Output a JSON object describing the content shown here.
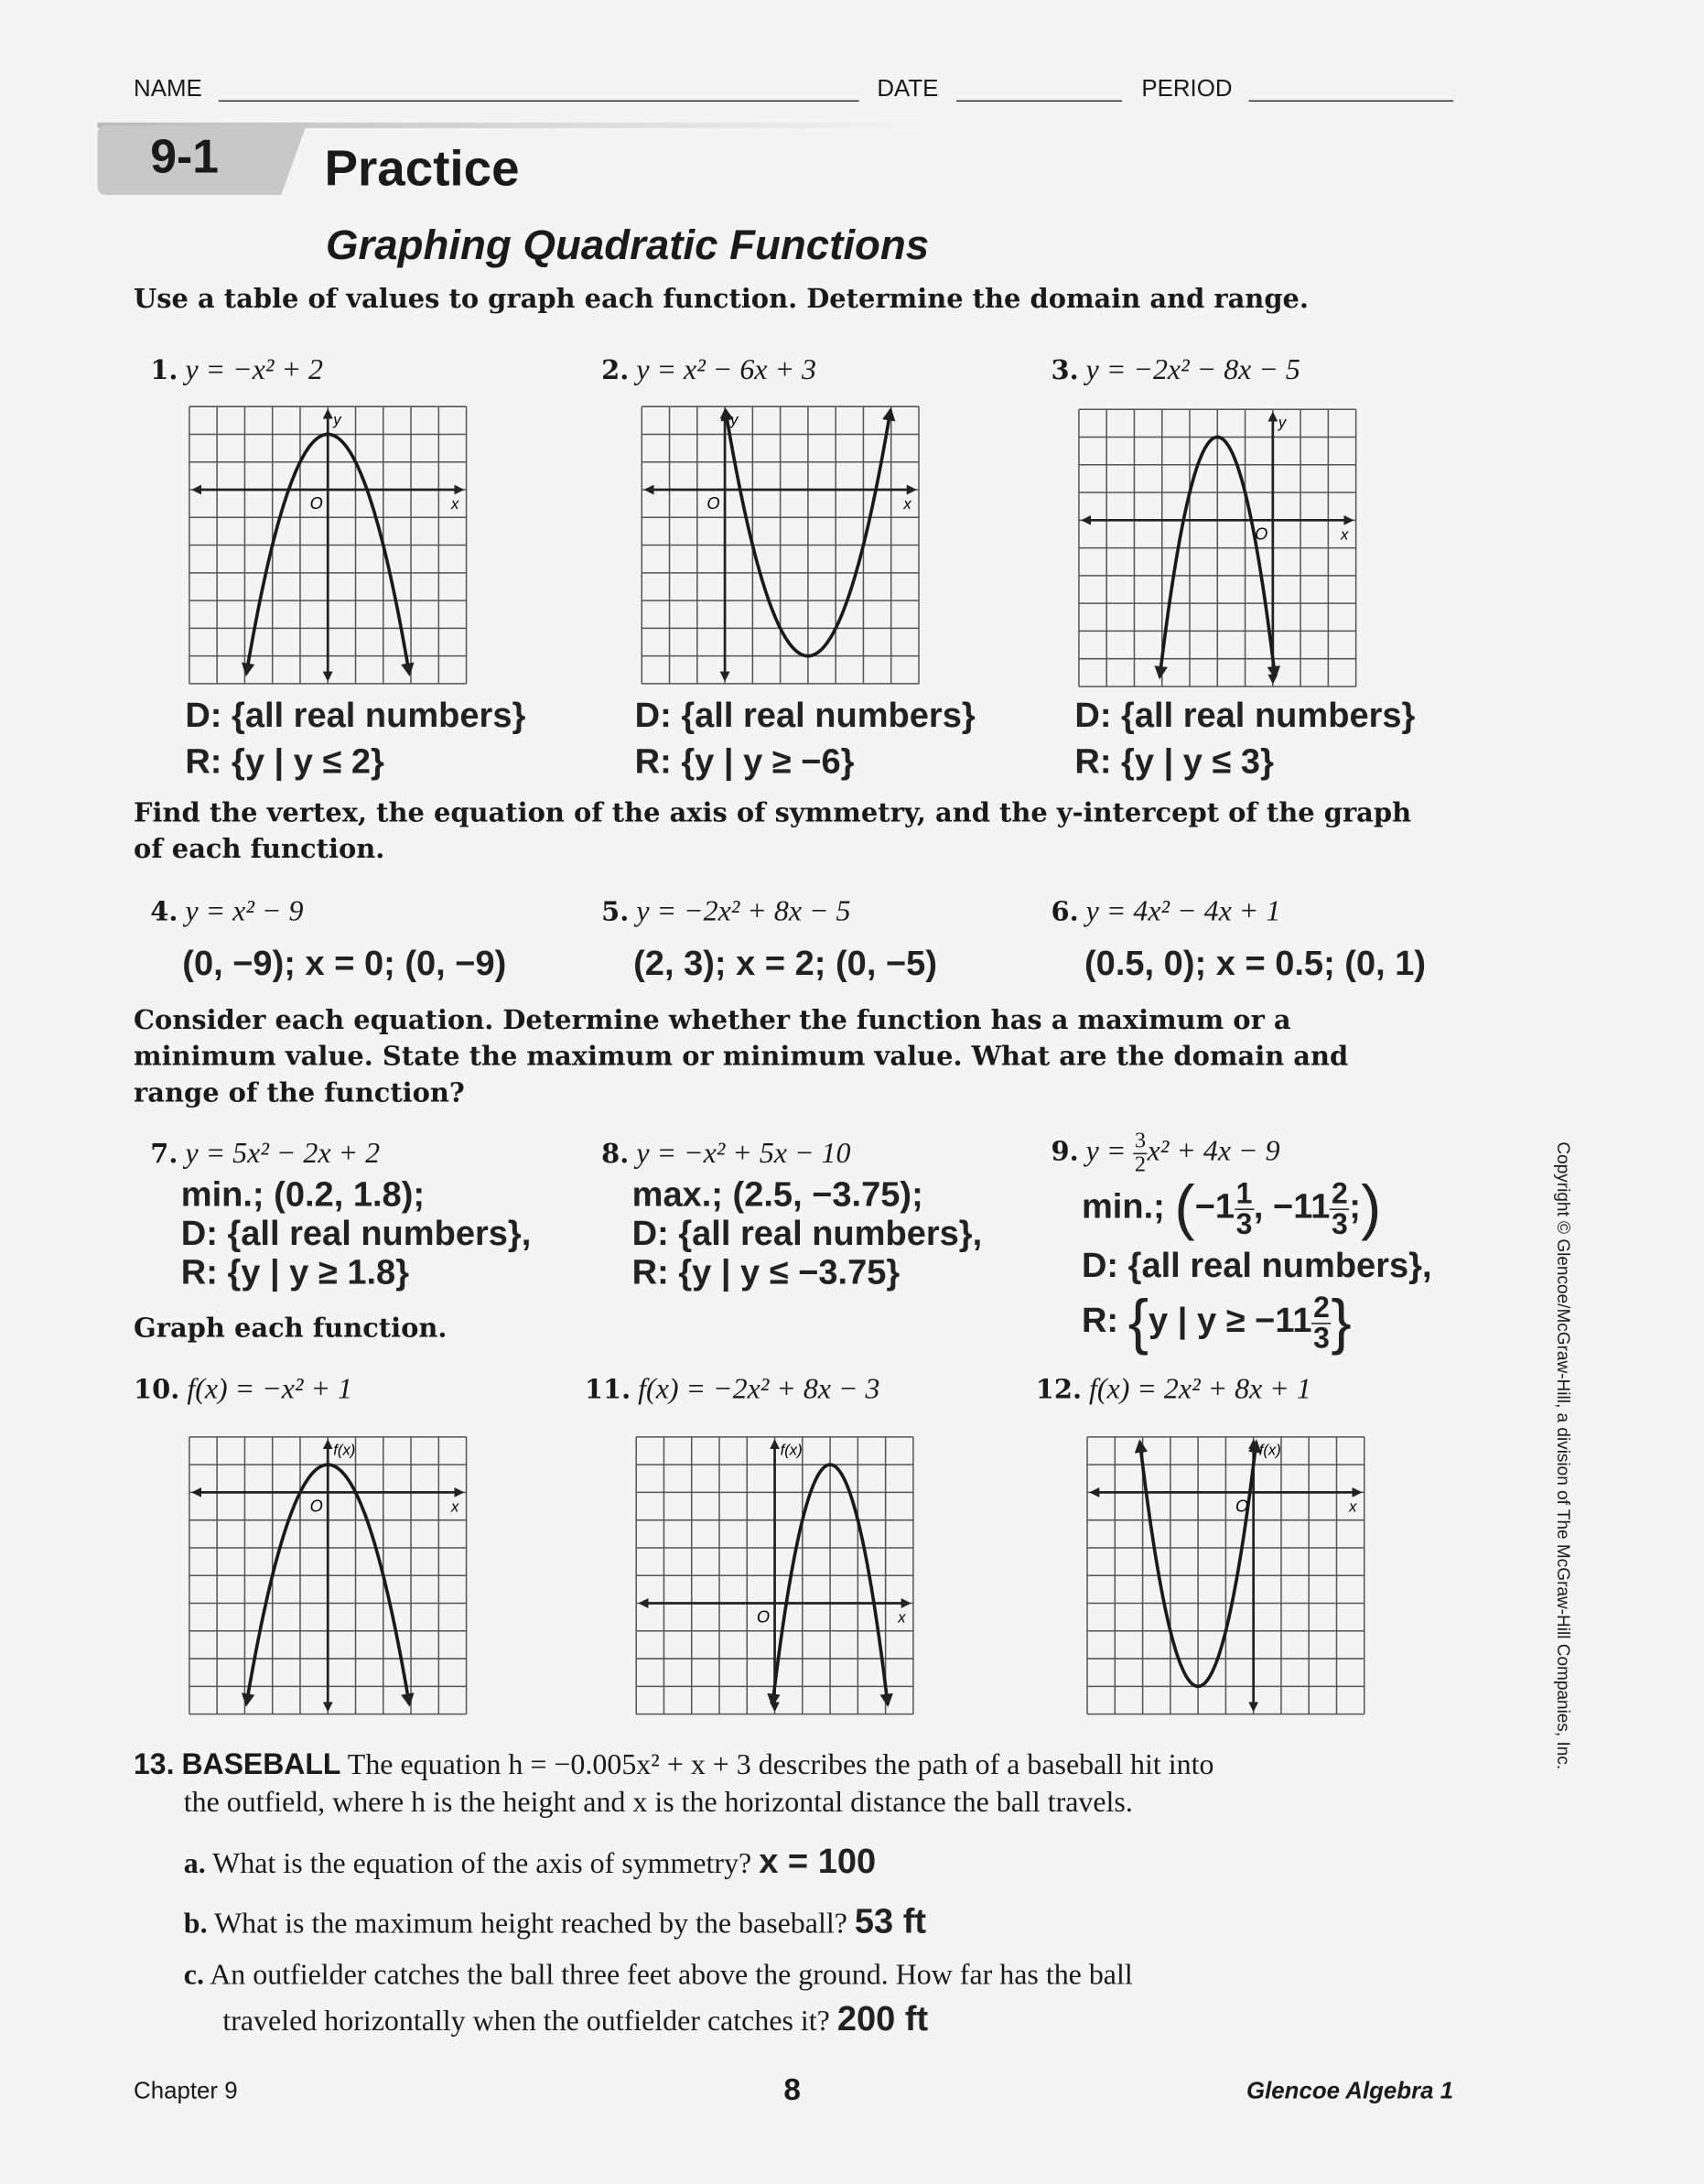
{
  "header": {
    "name_label": "NAME",
    "date_label": "DATE",
    "period_label": "PERIOD",
    "lesson": "9-1",
    "title": "Practice",
    "subtitle": "Graphing Quadratic Functions"
  },
  "instructions": [
    "Use a table of values to graph each function. Determine the domain and range.",
    "Find the vertex, the equation of the axis of symmetry, and the y-intercept of the graph of each function.",
    "Consider each equation. Determine whether the function has a maximum or a minimum value. State the maximum or minimum value. What are the domain and range of the function?",
    "Graph each function."
  ],
  "problems": [
    {
      "num": "1.",
      "eq": "y = −x² + 2",
      "domain": "D: {all real numbers}",
      "range": "R: {y | y ≤ 2}"
    },
    {
      "num": "2.",
      "eq": "y = x² − 6x + 3",
      "domain": "D: {all real numbers}",
      "range": "R: {y | y ≥ −6}"
    },
    {
      "num": "3.",
      "eq": "y = −2x² − 8x − 5",
      "domain": "D: {all real numbers}",
      "range": "R: {y | y ≤ 3}"
    },
    {
      "num": "4.",
      "eq": "y = x² − 9",
      "answer": "(0, −9); x = 0; (0, −9)"
    },
    {
      "num": "5.",
      "eq": "y = −2x² + 8x − 5",
      "answer": "(2, 3); x = 2; (0, −5)"
    },
    {
      "num": "6.",
      "eq": "y = 4x² − 4x + 1",
      "answer": "(0.5, 0); x = 0.5; (0, 1)"
    },
    {
      "num": "7.",
      "eq": "y = 5x² − 2x + 2",
      "answer": "min.; (0.2, 1.8);",
      "domain": "D: {all real numbers},",
      "range": "R: {y | y ≥ 1.8}"
    },
    {
      "num": "8.",
      "eq": "y = −x² + 5x − 10",
      "answer": "max.; (2.5, −3.75);",
      "domain": "D: {all real numbers},",
      "range": "R: {y | y ≤ −3.75}"
    },
    {
      "num": "9.",
      "eq_pre": "y = ",
      "eq_num": "3",
      "eq_den": "2",
      "eq_post": "x² + 4x − 9",
      "answer_pre": "min.;",
      "ans_x": "−1",
      "ans_x_num": "1",
      "ans_x_den": "3",
      "ans_y": "−11",
      "ans_y_num": "2",
      "ans_y_den": "3",
      "domain": "D: {all real numbers},",
      "range_pre": "R:",
      "range_body": "y | y ≥ −11",
      "range_num": "2",
      "range_den": "3"
    },
    {
      "num": "10.",
      "eq": "f(x) = −x² + 1"
    },
    {
      "num": "11.",
      "eq": "f(x) = −2x² + 8x − 3"
    },
    {
      "num": "12.",
      "eq": "f(x) = 2x² + 8x + 1"
    }
  ],
  "graphs": [
    {
      "a": -1,
      "b": 0,
      "c": 2,
      "xrange": [
        -5,
        5
      ],
      "yrange": [
        -7,
        3
      ],
      "ylabel": "y",
      "xlabel": "x",
      "origin": "O"
    },
    {
      "a": 1,
      "b": -6,
      "c": 3,
      "xrange": [
        -3,
        7
      ],
      "yrange": [
        -7,
        3
      ],
      "ylabel": "y",
      "xlabel": "x",
      "origin": "O"
    },
    {
      "a": -2,
      "b": -8,
      "c": -5,
      "xrange": [
        -7,
        3
      ],
      "yrange": [
        -6,
        4
      ],
      "ylabel": "y",
      "xlabel": "x",
      "origin": "O"
    },
    {
      "a": -1,
      "b": 0,
      "c": 1,
      "xrange": [
        -5,
        5
      ],
      "yrange": [
        -8,
        2
      ],
      "ylabel": "f(x)",
      "xlabel": "x",
      "origin": "O"
    },
    {
      "a": -2,
      "b": 8,
      "c": -3,
      "xrange": [
        -5,
        5
      ],
      "yrange": [
        -4,
        6
      ],
      "ylabel": "f(x)",
      "xlabel": "x",
      "origin": "O"
    },
    {
      "a": 2,
      "b": 8,
      "c": 1,
      "xrange": [
        -6,
        4
      ],
      "yrange": [
        -8,
        2
      ],
      "ylabel": "f(x)",
      "xlabel": "x",
      "origin": "O"
    }
  ],
  "baseball": {
    "num": "13.",
    "label": "BASEBALL",
    "text1": "The equation h = −0.005x² + x + 3 describes the path of a baseball hit into",
    "text2": "the outfield, where h is the height and x is the horizontal distance the ball travels.",
    "a_label": "a.",
    "a_q": "What is the equation of the axis of symmetry?",
    "a_ans": "x = 100",
    "b_label": "b.",
    "b_q": "What is the maximum height reached by the baseball?",
    "b_ans": "53 ft",
    "c_label": "c.",
    "c_q1": "An outfielder catches the ball three feet above the ground. How far has the ball",
    "c_q2": "traveled horizontally when the outfielder catches it?",
    "c_ans": "200 ft"
  },
  "footer": {
    "chapter": "Chapter 9",
    "page": "8",
    "book": "Glencoe Algebra 1"
  },
  "copyright": "Copyright © Glencoe/McGraw-Hill, a division of The McGraw-Hill Companies, Inc."
}
